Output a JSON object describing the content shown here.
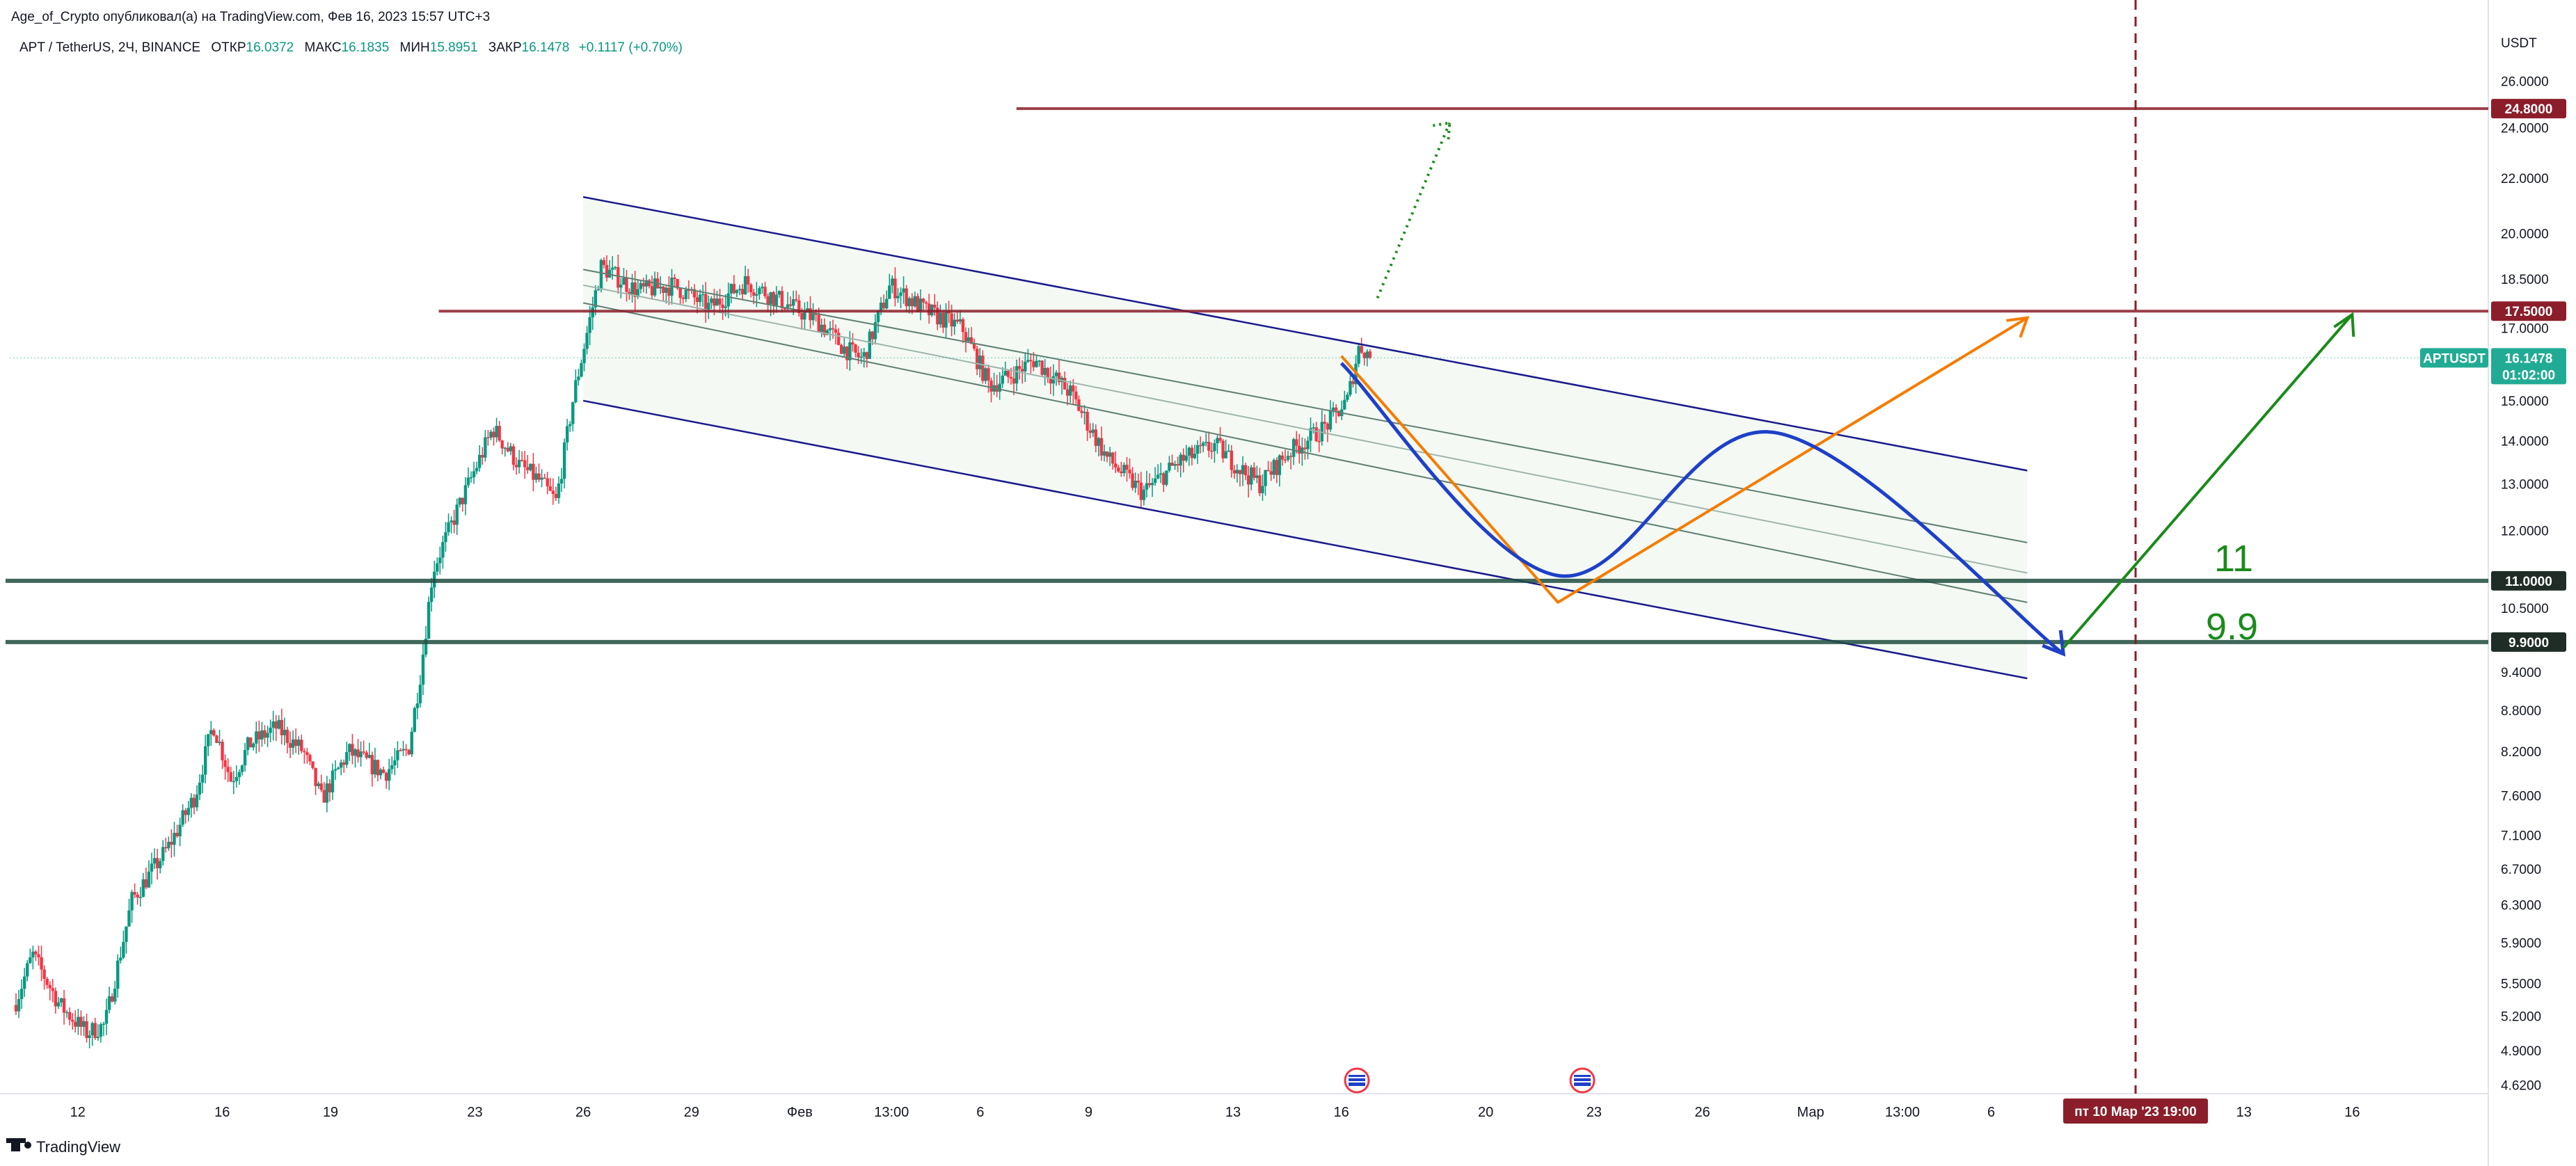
{
  "publisher_line": "Age_of_Crypto опубликовал(а) на TradingView.com, Фев 16, 2023 15:57 UTC+3",
  "legend": {
    "symbol": "APT / TetherUS, 2Ч, BINANCE",
    "open_label": "ОТКР",
    "open_value": "16.0372",
    "high_label": "МАКС",
    "high_value": "16.1835",
    "low_label": "МИН",
    "low_value": "15.8951",
    "close_label": "ЗАКР",
    "close_value": "16.1478",
    "change": "+0.1117 (+0.70%)"
  },
  "currency": "USDT",
  "footer_brand": "TradingView",
  "last_price": {
    "ticker": "APTUSDT",
    "value": "16.1478",
    "countdown": "01:02:00"
  },
  "crosshair_date": "пт 10 Мар '23   19:00",
  "colors": {
    "up": "#089981",
    "down": "#f23645",
    "channel": "#1a1a8c",
    "resistance": "#8b1e2a",
    "support": "#1f4d3f",
    "orange": "#f57c00",
    "blue_curve": "#1e40c8",
    "green_arrow": "#1b8a1b"
  },
  "chart_data": {
    "type": "candlestick",
    "title": "APT / TetherUS, 2Ч, BINANCE",
    "ylabel": "USDT",
    "scale": "log",
    "ylim": [
      4.4,
      28.5
    ],
    "y_ticks": [
      "26.0000",
      "24.0000",
      "22.0000",
      "20.0000",
      "18.5000",
      "17.0000",
      "15.0000",
      "14.0000",
      "13.0000",
      "12.0000",
      "10.5000",
      "9.4000",
      "8.8000",
      "8.2000",
      "7.6000",
      "7.1000",
      "6.7000",
      "6.3000",
      "5.9000",
      "5.5000",
      "5.2000",
      "4.9000",
      "4.6200"
    ],
    "x_ticks": [
      "12",
      "16",
      "19",
      "23",
      "26",
      "29",
      "Фев",
      "13:00",
      "6",
      "9",
      "13",
      "16",
      "20",
      "23",
      "26",
      "Мар",
      "13:00",
      "6",
      "13",
      "16"
    ],
    "x_range": [
      "2023-01-10",
      "2023-03-19"
    ],
    "price_path": [
      [
        "2023-01-10",
        5.3
      ],
      [
        "2023-01-10",
        5.78
      ],
      [
        "2023-01-11",
        5.3
      ],
      [
        "2023-01-12",
        5.05
      ],
      [
        "2023-01-12",
        5.12
      ],
      [
        "2023-01-13",
        6.35
      ],
      [
        "2023-01-14",
        6.95
      ],
      [
        "2023-01-15",
        7.6
      ],
      [
        "2023-01-15",
        8.6
      ],
      [
        "2023-01-16",
        7.8
      ],
      [
        "2023-01-16",
        8.3
      ],
      [
        "2023-01-17",
        8.55
      ],
      [
        "2023-01-18",
        8.2
      ],
      [
        "2023-01-18",
        7.55
      ],
      [
        "2023-01-19",
        8.2
      ],
      [
        "2023-01-20",
        7.9
      ],
      [
        "2023-01-21",
        8.25
      ],
      [
        "2023-01-21",
        9.4
      ],
      [
        "2023-01-21",
        11.2
      ],
      [
        "2023-01-22",
        12.4
      ],
      [
        "2023-01-23",
        14.3
      ],
      [
        "2023-01-24",
        13.4
      ],
      [
        "2023-01-24",
        13.1
      ],
      [
        "2023-01-25",
        12.6
      ],
      [
        "2023-01-25",
        15.2
      ],
      [
        "2023-01-26",
        18.9
      ],
      [
        "2023-01-27",
        18.1
      ],
      [
        "2023-01-28",
        18.3
      ],
      [
        "2023-01-29",
        17.6
      ],
      [
        "2023-01-30",
        18.4
      ],
      [
        "2023-01-31",
        17.8
      ],
      [
        "2023-02-01",
        17.2
      ],
      [
        "2023-02-02",
        16.4
      ],
      [
        "2023-02-02",
        16.1
      ],
      [
        "2023-02-03",
        18.3
      ],
      [
        "2023-02-04",
        17.5
      ],
      [
        "2023-02-05",
        17.0
      ],
      [
        "2023-02-06",
        15.4
      ],
      [
        "2023-02-06",
        15.6
      ],
      [
        "2023-02-07",
        16.1
      ],
      [
        "2023-02-08",
        15.2
      ],
      [
        "2023-02-09",
        13.6
      ],
      [
        "2023-02-10",
        12.8
      ],
      [
        "2023-02-11",
        13.5
      ],
      [
        "2023-02-12",
        13.9
      ],
      [
        "2023-02-13",
        13.3
      ],
      [
        "2023-02-13",
        13.0
      ],
      [
        "2023-02-14",
        13.7
      ],
      [
        "2023-02-15",
        14.3
      ],
      [
        "2023-02-16",
        15.0
      ],
      [
        "2023-02-16",
        16.5
      ],
      [
        "2023-02-16",
        16.15
      ]
    ],
    "candle_count": 480,
    "horizontal_levels": [
      {
        "price": 24.8,
        "label": "24.8000",
        "kind": "resistance",
        "from": "2023-02-07"
      },
      {
        "price": 17.5,
        "label": "17.5000",
        "kind": "resistance",
        "from": "2023-01-22"
      },
      {
        "price": 11.0,
        "label": "11.0000",
        "kind": "support",
        "from": "2023-01-10"
      },
      {
        "price": 9.9,
        "label": "9.9000",
        "kind": "support",
        "from": "2023-01-10"
      }
    ],
    "channel": {
      "start": "2023-01-26",
      "end": "2023-03-07",
      "upper": [
        21.3,
        13.3
      ],
      "lower": [
        15.0,
        9.3
      ],
      "inner_lines": [
        [
          18.8,
          11.75
        ],
        [
          18.3,
          11.15
        ],
        [
          17.75,
          10.6
        ]
      ]
    },
    "projection": {
      "orange_path": [
        [
          "2023-02-16",
          16.2
        ],
        [
          "2023-02-22",
          10.6
        ],
        [
          "2023-03-07",
          17.3
        ]
      ],
      "blue_path": [
        [
          "2023-02-16",
          16.0
        ],
        [
          "2023-02-22",
          11.1
        ],
        [
          "2023-02-28",
          14.2
        ],
        [
          "2023-03-08",
          9.7
        ]
      ],
      "green_arrow": [
        [
          "2023-03-08",
          9.8
        ],
        [
          "2023-03-16",
          17.4
        ]
      ],
      "green_dotted": [
        [
          "2023-02-17",
          17.9
        ],
        [
          "2023-02-19",
          24.2
        ]
      ],
      "crosshair_date": "2023-03-10"
    },
    "annotations": [
      "11",
      "9.9"
    ]
  }
}
